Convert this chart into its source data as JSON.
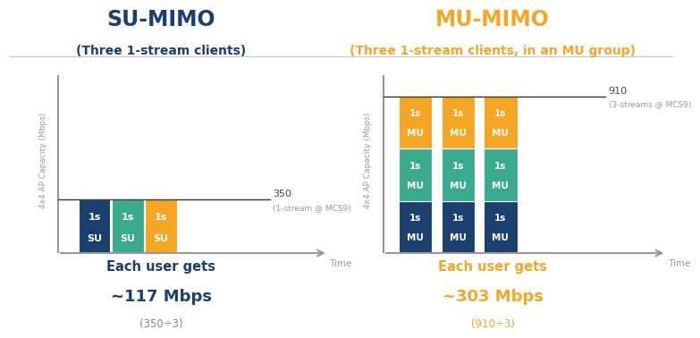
{
  "bg_color": "#ffffff",
  "divider_color": "#cccccc",
  "su_title": "SU-MIMO",
  "su_title_color": "#1b3f6e",
  "su_subtitle": "(Three 1-stream clients)",
  "su_subtitle_color": "#1b3f6e",
  "su_bar_colors": [
    "#1b3f6e",
    "#3aab8e",
    "#f5a623"
  ],
  "su_bar_label_top": "1s",
  "su_bar_label_bot": "SU",
  "su_line_label": "350",
  "su_line_sublabel": "(1-stream @ MCS9)",
  "su_footer1": "Each user gets",
  "su_footer2": "~117 Mbps",
  "su_footer3": "(350÷3)",
  "su_footer_color1": "#1b3f6e",
  "su_footer_color3": "#888888",
  "mu_title": "MU-MIMO",
  "mu_title_color": "#f5a623",
  "mu_subtitle": "(Three 1-stream clients, in an MU group)",
  "mu_subtitle_color": "#f5a623",
  "mu_bar_colors": [
    "#1b3f6e",
    "#3aab8e",
    "#f5a623"
  ],
  "mu_bar_label_top": "1s",
  "mu_bar_label_bot": "MU",
  "mu_line_label": "910",
  "mu_line_sublabel": "(3-streams @ MCS9)",
  "mu_footer1": "Each user gets",
  "mu_footer2": "~303 Mbps",
  "mu_footer3": "(910÷3)",
  "mu_footer_color1": "#f5a623",
  "mu_footer_color3": "#f5a623",
  "ylabel": "4x4 AP Capacity (Mbps)",
  "axis_color": "#999999",
  "text_color_dark": "#444444"
}
